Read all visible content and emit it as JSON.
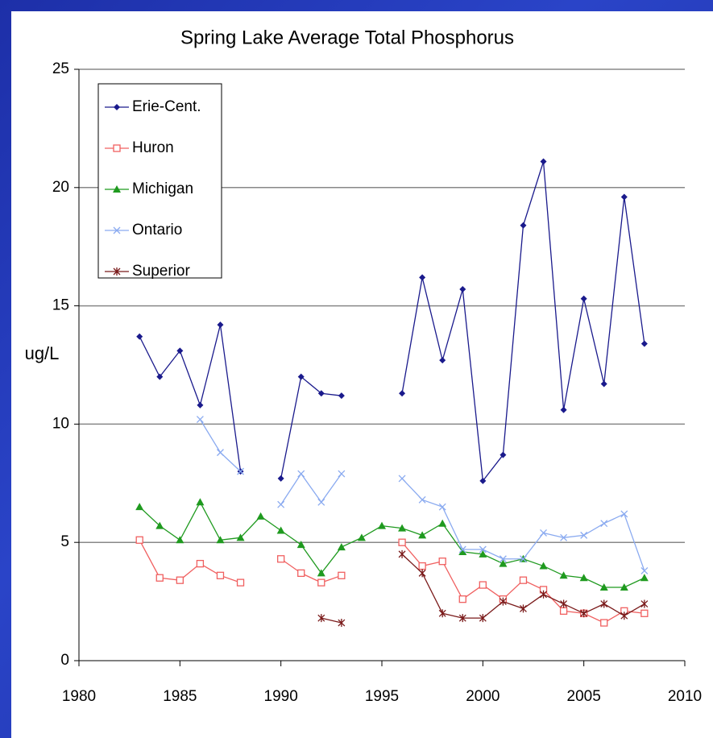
{
  "chart_data": {
    "type": "line",
    "title": "Spring Lake Average Total Phosphorus",
    "y_label": "ug/L",
    "x": [
      1983,
      1984,
      1985,
      1986,
      1987,
      1988,
      1989,
      1990,
      1991,
      1992,
      1993,
      1994,
      1995,
      1996,
      1997,
      1998,
      1999,
      2000,
      2001,
      2002,
      2003,
      2004,
      2005,
      2006,
      2007,
      2008
    ],
    "series": [
      {
        "name": "Erie-Cent.",
        "color": "#1a1a8c",
        "marker": "diamond",
        "values": [
          13.7,
          12.0,
          13.1,
          10.8,
          14.2,
          8.0,
          null,
          7.7,
          12.0,
          11.3,
          11.2,
          null,
          null,
          11.3,
          16.2,
          12.7,
          15.7,
          7.6,
          8.7,
          18.4,
          21.1,
          10.6,
          15.3,
          11.7,
          19.6,
          13.4
        ]
      },
      {
        "name": "Huron",
        "color": "#f06060",
        "marker": "square",
        "values": [
          5.1,
          3.5,
          3.4,
          4.1,
          3.6,
          3.3,
          null,
          4.3,
          3.7,
          3.3,
          3.6,
          null,
          null,
          5.0,
          4.0,
          4.2,
          2.6,
          3.2,
          2.6,
          3.4,
          3.0,
          2.1,
          2.0,
          1.6,
          2.1,
          2.0
        ]
      },
      {
        "name": "Michigan",
        "color": "#1f9a1f",
        "marker": "triangle",
        "values": [
          6.5,
          5.7,
          5.1,
          6.7,
          5.1,
          5.2,
          6.1,
          5.5,
          4.9,
          3.7,
          4.8,
          5.2,
          5.7,
          5.6,
          5.3,
          5.8,
          4.6,
          4.5,
          4.1,
          4.3,
          4.0,
          3.6,
          3.5,
          3.1,
          3.1,
          3.5
        ]
      },
      {
        "name": "Ontario",
        "color": "#8aaaf0",
        "marker": "x",
        "values": [
          null,
          null,
          null,
          10.2,
          8.8,
          8.0,
          null,
          6.6,
          7.9,
          6.7,
          7.9,
          null,
          null,
          7.7,
          6.8,
          6.5,
          4.7,
          4.7,
          4.3,
          4.3,
          5.4,
          5.2,
          5.3,
          5.8,
          6.2,
          3.8
        ]
      },
      {
        "name": "Superior",
        "color": "#7a1a1a",
        "marker": "star",
        "values": [
          null,
          null,
          null,
          null,
          null,
          null,
          null,
          null,
          null,
          1.8,
          1.6,
          null,
          null,
          4.5,
          3.7,
          2.0,
          1.8,
          1.8,
          2.5,
          2.2,
          2.8,
          2.4,
          2.0,
          2.4,
          1.9,
          2.4
        ]
      }
    ],
    "xlim": [
      1980,
      2010
    ],
    "xticks": [
      1980,
      1985,
      1990,
      1995,
      2000,
      2005,
      2010
    ],
    "ylim": [
      0,
      25
    ],
    "yticks": [
      0,
      5,
      10,
      15,
      20,
      25
    ],
    "grid": true,
    "legend": "upper left"
  }
}
